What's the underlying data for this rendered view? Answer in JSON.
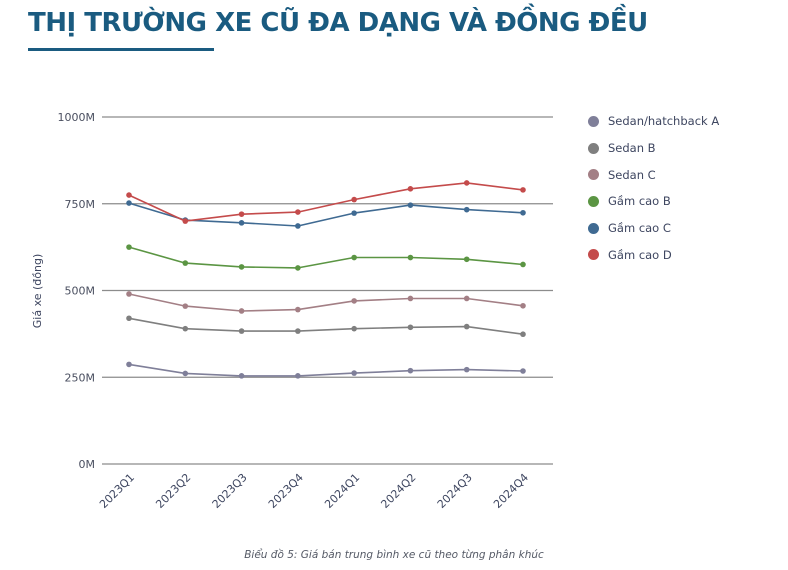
{
  "header": {
    "title": "THỊ TRƯỜNG XE CŨ ĐA DẠNG VÀ ĐỒNG ĐỀU"
  },
  "caption": "Biểu đồ 5: Giá bán trung bình xe cũ theo từng phân khúc",
  "colors": {
    "title": "#1A5B80",
    "grid": "#8c8c8c"
  },
  "chart_data": {
    "type": "line",
    "title": "",
    "xlabel": "",
    "ylabel": "Giá xe (đồng)",
    "ylim": [
      0,
      1000
    ],
    "y_unit": "M",
    "yticks": [
      "0M",
      "250M",
      "500M",
      "750M",
      "1000M"
    ],
    "ytick_values": [
      0,
      250,
      500,
      750,
      1000
    ],
    "grid": true,
    "legend_position": "right",
    "categories": [
      "2023Q1",
      "2023Q2",
      "2023Q3",
      "2023Q4",
      "2024Q1",
      "2024Q2",
      "2024Q3",
      "2024Q4"
    ],
    "series": [
      {
        "name": "Sedan/hatchback A",
        "color": "#7F7F99",
        "values": [
          287,
          261,
          254,
          254,
          262,
          269,
          272,
          268
        ]
      },
      {
        "name": "Sedan B",
        "color": "#7F7F7F",
        "values": [
          420,
          390,
          383,
          383,
          390,
          394,
          396,
          374
        ]
      },
      {
        "name": "Sedan C",
        "color": "#A37F85",
        "values": [
          490,
          455,
          441,
          445,
          470,
          477,
          477,
          456
        ]
      },
      {
        "name": "Gầm cao B",
        "color": "#5B9543",
        "values": [
          625,
          579,
          568,
          565,
          595,
          595,
          590,
          575
        ]
      },
      {
        "name": "Gầm cao C",
        "color": "#3F6A92",
        "values": [
          752,
          703,
          695,
          686,
          723,
          746,
          733,
          724
        ]
      },
      {
        "name": "Gầm cao D",
        "color": "#C44B4B",
        "values": [
          775,
          700,
          720,
          726,
          762,
          793,
          810,
          790
        ]
      }
    ]
  }
}
